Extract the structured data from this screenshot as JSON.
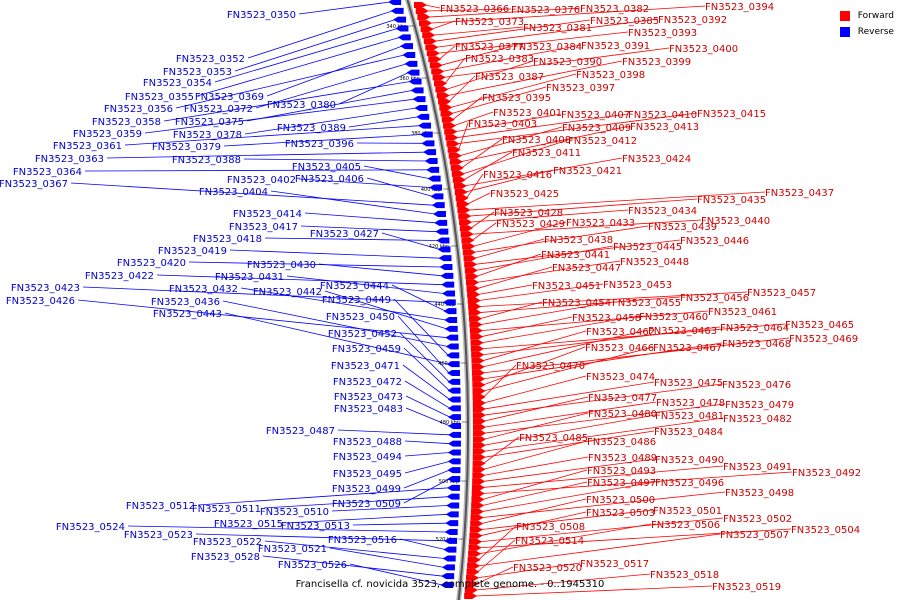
{
  "caption": "Francisella cf. novicida 3523, complete genome. - 0..1945310",
  "legend": {
    "forward_label": "Forward",
    "reverse_label": "Reverse",
    "forward_color": "#ff0000",
    "reverse_color": "#0000ff"
  },
  "ticks": [
    "340 kbp",
    "360 kbp",
    "380 kbp",
    "400 kbp",
    "420 kbp",
    "440 kbp",
    "460 kbp",
    "480 kbp",
    "500 kbp",
    "520 kbp"
  ],
  "forward_genes": [
    "FN3523_0366",
    "FN3523_0376",
    "FN3523_0382",
    "FN3523_0394",
    "FN3523_0373",
    "FN3523_0381",
    "FN3523_0385",
    "FN3523_0392",
    "FN3523_0393",
    "FN3523_0377",
    "FN3523_0384",
    "FN3523_0391",
    "FN3523_0400",
    "FN3523_0383",
    "FN3523_0390",
    "FN3523_0399",
    "FN3523_0387",
    "FN3523_0398",
    "FN3523_0397",
    "FN3523_0395",
    "FN3523_0401",
    "FN3523_0407",
    "FN3523_0410",
    "FN3523_0415",
    "FN3523_0403",
    "FN3523_0409",
    "FN3523_0413",
    "FN3523_0408",
    "FN3523_0412",
    "FN3523_0411",
    "FN3523_0424",
    "FN3523_0421",
    "FN3523_0416",
    "FN3523_0425",
    "FN3523_0437",
    "FN3523_0435",
    "FN3523_0434",
    "FN3523_0428",
    "FN3523_0440",
    "FN3523_0429",
    "FN3523_0433",
    "FN3523_0439",
    "FN3523_0438",
    "FN3523_0446",
    "FN3523_0445",
    "FN3523_0441",
    "FN3523_0448",
    "FN3523_0447",
    "FN3523_0451",
    "FN3523_0453",
    "FN3523_0457",
    "FN3523_0456",
    "FN3523_0454",
    "FN3523_0455",
    "FN3523_0461",
    "FN3523_0458",
    "FN3523_0460",
    "FN3523_0465",
    "FN3523_0464",
    "FN3523_0462",
    "FN3523_0463",
    "FN3523_0469",
    "FN3523_0468",
    "FN3523_0466",
    "FN3523_0467",
    "FN3523_0470",
    "FN3523_0474",
    "FN3523_0475",
    "FN3523_0476",
    "FN3523_0477",
    "FN3523_0478",
    "FN3523_0479",
    "FN3523_0480",
    "FN3523_0481",
    "FN3523_0482",
    "FN3523_0484",
    "FN3523_0485",
    "FN3523_0486",
    "FN3523_0489",
    "FN3523_0490",
    "FN3523_0491",
    "FN3523_0492",
    "FN3523_0493",
    "FN3523_0497",
    "FN3523_0496",
    "FN3523_0498",
    "FN3523_0500",
    "FN3523_0501",
    "FN3523_0503",
    "FN3523_0502",
    "FN3523_0504",
    "FN3523_0506",
    "FN3523_0508",
    "FN3523_0507",
    "FN3523_0514",
    "FN3523_0517",
    "FN3523_0520",
    "FN3523_0518",
    "FN3523_0519"
  ],
  "reverse_genes": [
    "FN3523_0350",
    "FN3523_0352",
    "FN3523_0353",
    "FN3523_0354",
    "FN3523_0355",
    "FN3523_0369",
    "FN3523_0356",
    "FN3523_0372",
    "FN3523_0380",
    "FN3523_0358",
    "FN3523_0375",
    "FN3523_0359",
    "FN3523_0378",
    "FN3523_0389",
    "FN3523_0361",
    "FN3523_0379",
    "FN3523_0396",
    "FN3523_0363",
    "FN3523_0388",
    "FN3523_0364",
    "FN3523_0405",
    "FN3523_0402",
    "FN3523_0406",
    "FN3523_0367",
    "FN3523_0404",
    "FN3523_0414",
    "FN3523_0417",
    "FN3523_0418",
    "FN3523_0427",
    "FN3523_0419",
    "FN3523_0420",
    "FN3523_0430",
    "FN3523_0422",
    "FN3523_0431",
    "FN3523_0423",
    "FN3523_0444",
    "FN3523_0432",
    "FN3523_0442",
    "FN3523_0426",
    "FN3523_0436",
    "FN3523_0449",
    "FN3523_0443",
    "FN3523_0450",
    "FN3523_0452",
    "FN3523_0459",
    "FN3523_0471",
    "FN3523_0472",
    "FN3523_0473",
    "FN3523_0483",
    "FN3523_0487",
    "FN3523_0488",
    "FN3523_0494",
    "FN3523_0495",
    "FN3523_0499",
    "FN3523_0509",
    "FN3523_0512",
    "FN3523_0511",
    "FN3523_0510",
    "FN3523_0515",
    "FN3523_0513",
    "FN3523_0524",
    "FN3523_0523",
    "FN3523_0516",
    "FN3523_0522",
    "FN3523_0521",
    "FN3523_0528",
    "FN3523_0526"
  ]
}
